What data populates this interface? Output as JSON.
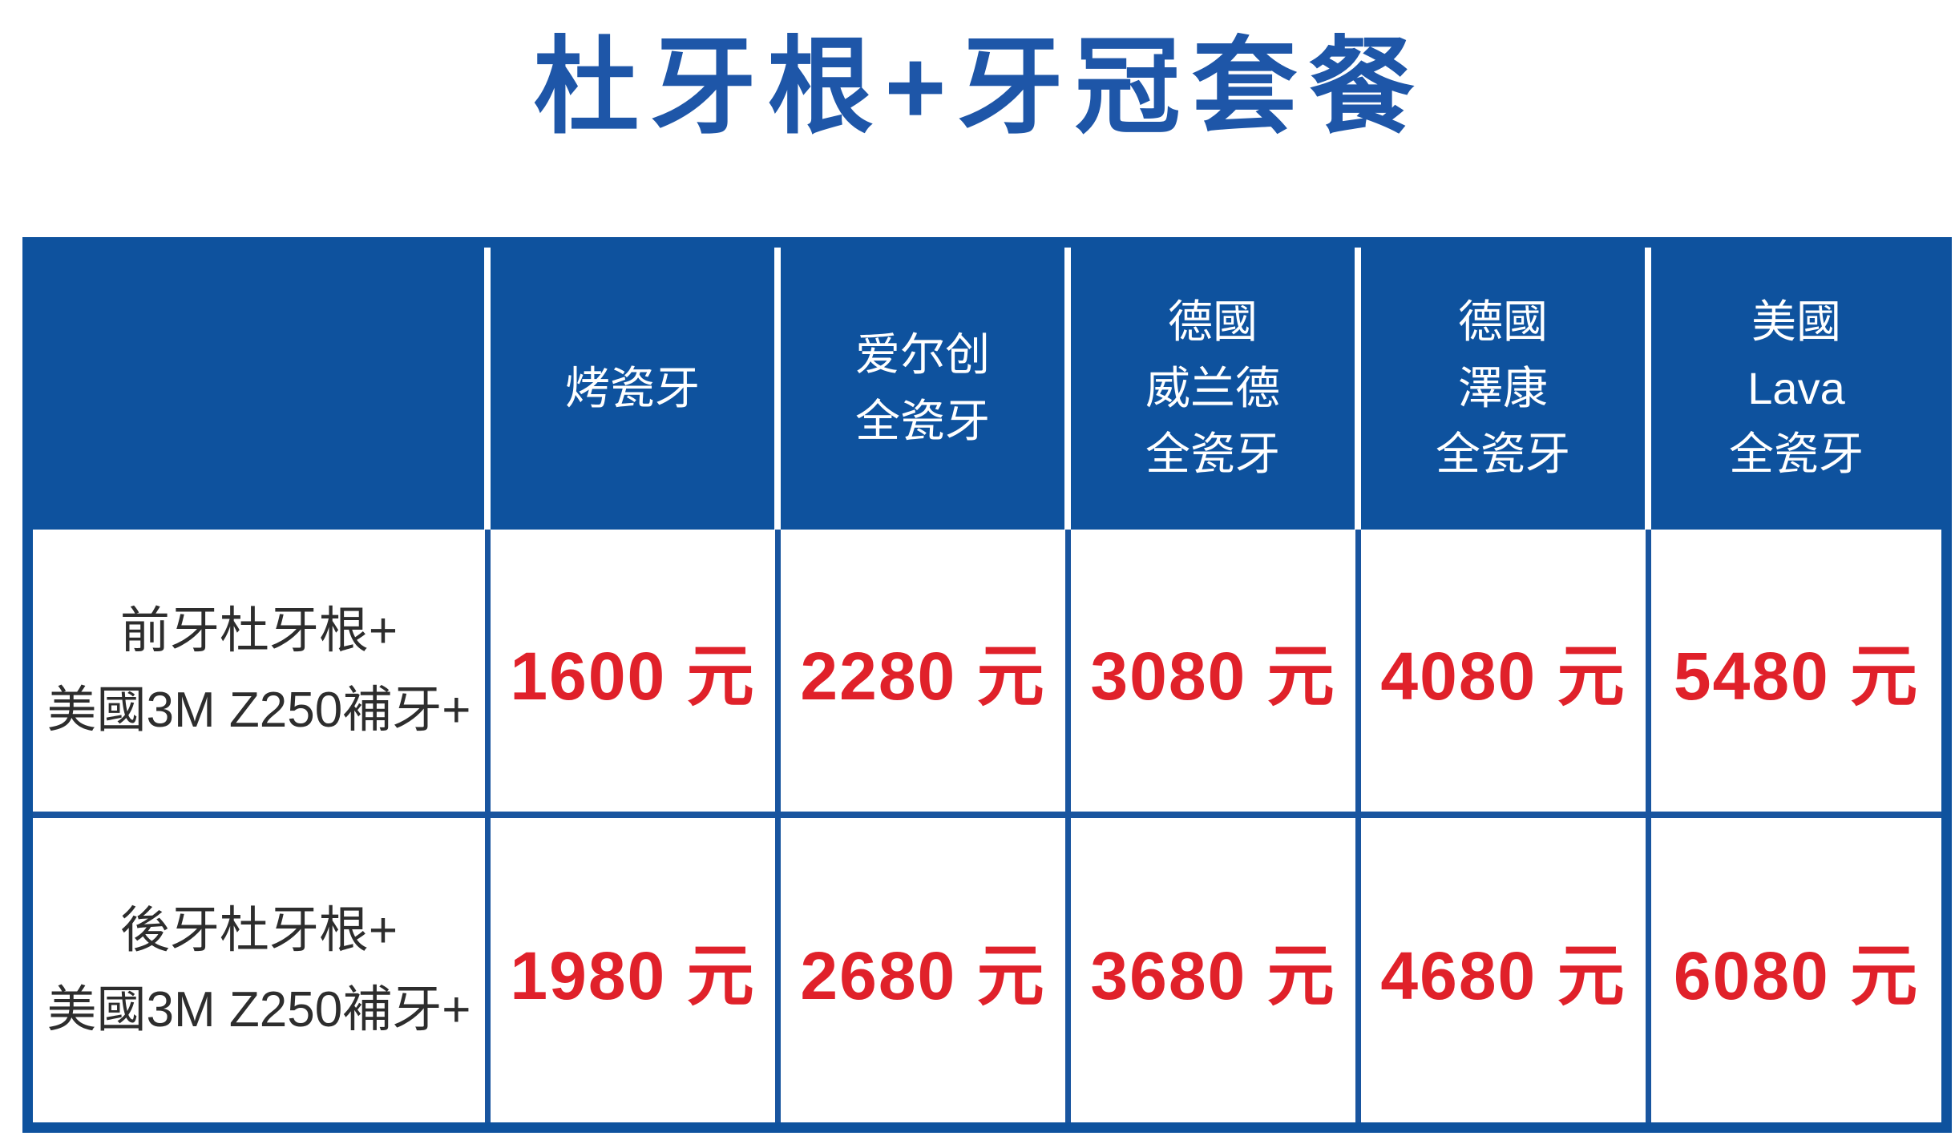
{
  "title": "杜牙根+牙冠套餐",
  "table": {
    "columns": [
      "",
      "烤瓷牙",
      "爱尔创\n全瓷牙",
      "德國\n威兰德\n全瓷牙",
      "德國\n澤康\n全瓷牙",
      "美國\nLava\n全瓷牙"
    ],
    "rows": [
      {
        "label": "前牙杜牙根+\n美國3M Z250補牙+",
        "prices": [
          "1600 元",
          "2280 元",
          "3080 元",
          "4080 元",
          "5480 元"
        ]
      },
      {
        "label": "後牙杜牙根+\n美國3M Z250補牙+",
        "prices": [
          "1980 元",
          "2680 元",
          "3680 元",
          "4680 元",
          "6080 元"
        ]
      }
    ]
  },
  "colors": {
    "header_blue": "#0e529e",
    "grid_blue": "#19559f",
    "title_blue": "#1e56a8",
    "price_red": "#e0212a",
    "label_dark": "#2d2d2d"
  }
}
